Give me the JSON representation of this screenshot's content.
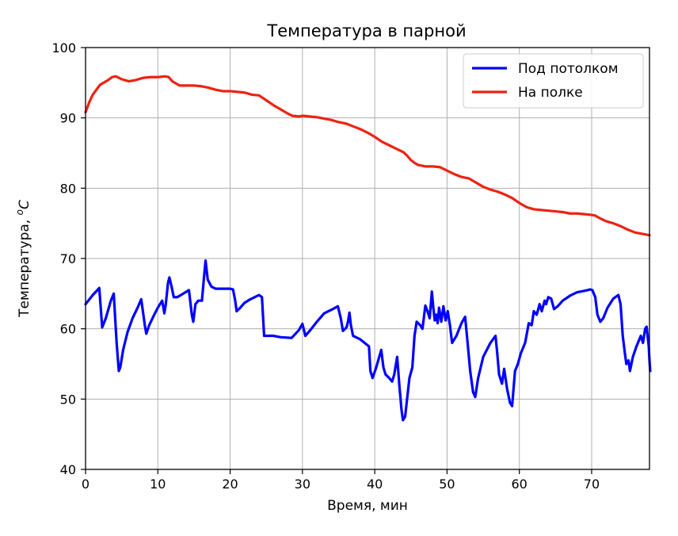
{
  "chart_data": {
    "type": "line",
    "title": "Температура в парной",
    "xlabel": "Время, мин",
    "ylabel_prefix": "Температура, ",
    "ylabel_sup": "o",
    "ylabel_unit": "C",
    "xlim": [
      0,
      78
    ],
    "ylim": [
      40,
      100
    ],
    "x_ticks": [
      0,
      10,
      20,
      30,
      40,
      50,
      60,
      70
    ],
    "y_ticks": [
      40,
      50,
      60,
      70,
      80,
      90,
      100
    ],
    "grid": true,
    "legend_position": "top-right",
    "series": [
      {
        "name": "Под потолком",
        "color": "#0000ff",
        "points": [
          [
            0,
            63.5
          ],
          [
            1,
            64.8
          ],
          [
            1.9,
            65.8
          ],
          [
            2.3,
            60.2
          ],
          [
            2.8,
            61.5
          ],
          [
            3.5,
            64
          ],
          [
            3.9,
            65
          ],
          [
            4.3,
            58
          ],
          [
            4.6,
            54
          ],
          [
            4.8,
            54.5
          ],
          [
            5.2,
            57
          ],
          [
            5.8,
            59.5
          ],
          [
            6.5,
            61.5
          ],
          [
            7.2,
            63
          ],
          [
            7.7,
            64.2
          ],
          [
            8,
            62
          ],
          [
            8.2,
            60.5
          ],
          [
            8.4,
            59.3
          ],
          [
            8.8,
            60.5
          ],
          [
            9.5,
            62
          ],
          [
            10,
            63
          ],
          [
            10.6,
            64
          ],
          [
            10.9,
            62.2
          ],
          [
            11.1,
            63.5
          ],
          [
            11.4,
            66.5
          ],
          [
            11.6,
            67.3
          ],
          [
            11.9,
            66
          ],
          [
            12.2,
            64.5
          ],
          [
            12.7,
            64.5
          ],
          [
            13.5,
            65
          ],
          [
            14.3,
            65.5
          ],
          [
            14.7,
            62
          ],
          [
            14.9,
            61
          ],
          [
            15.2,
            63.5
          ],
          [
            15.6,
            64
          ],
          [
            16.1,
            64
          ],
          [
            16.4,
            67.5
          ],
          [
            16.6,
            69.7
          ],
          [
            16.9,
            67
          ],
          [
            17.4,
            66
          ],
          [
            18,
            65.7
          ],
          [
            19,
            65.7
          ],
          [
            20,
            65.7
          ],
          [
            20.4,
            65.6
          ],
          [
            20.7,
            64
          ],
          [
            20.9,
            62.5
          ],
          [
            21.4,
            63
          ],
          [
            22,
            63.7
          ],
          [
            22.8,
            64.2
          ],
          [
            24,
            64.8
          ],
          [
            24.4,
            64.5
          ],
          [
            24.7,
            59
          ],
          [
            26,
            59
          ],
          [
            27,
            58.8
          ],
          [
            28.5,
            58.7
          ],
          [
            29.5,
            59.8
          ],
          [
            30,
            60.7
          ],
          [
            30.4,
            59
          ],
          [
            31,
            59.7
          ],
          [
            32,
            61
          ],
          [
            33,
            62.2
          ],
          [
            34,
            62.7
          ],
          [
            34.9,
            63.2
          ],
          [
            35.3,
            61.5
          ],
          [
            35.6,
            59.7
          ],
          [
            36.1,
            60.2
          ],
          [
            36.3,
            61
          ],
          [
            36.5,
            62.3
          ],
          [
            36.7,
            60.5
          ],
          [
            37,
            59
          ],
          [
            38,
            58.5
          ],
          [
            39.2,
            57.5
          ],
          [
            39.4,
            54
          ],
          [
            39.7,
            53
          ],
          [
            40.2,
            54.5
          ],
          [
            40.9,
            57
          ],
          [
            41.2,
            54.5
          ],
          [
            41.5,
            53.5
          ],
          [
            42,
            53
          ],
          [
            42.4,
            52.5
          ],
          [
            42.7,
            53.5
          ],
          [
            43.1,
            56
          ],
          [
            43.4,
            52
          ],
          [
            43.7,
            48.5
          ],
          [
            43.9,
            47
          ],
          [
            44.2,
            47.5
          ],
          [
            44.8,
            53
          ],
          [
            45.2,
            54.5
          ],
          [
            45.5,
            59
          ],
          [
            45.8,
            61
          ],
          [
            46.3,
            60.5
          ],
          [
            46.6,
            60
          ],
          [
            47,
            63.3
          ],
          [
            47.3,
            62.5
          ],
          [
            47.6,
            61.5
          ],
          [
            47.9,
            65.3
          ],
          [
            48.1,
            63
          ],
          [
            48.3,
            61.2
          ],
          [
            48.5,
            62
          ],
          [
            48.7,
            60.8
          ],
          [
            48.9,
            63
          ],
          [
            49.2,
            61
          ],
          [
            49.5,
            63.2
          ],
          [
            49.8,
            61.2
          ],
          [
            50.1,
            62.5
          ],
          [
            50.4,
            60.5
          ],
          [
            50.7,
            58
          ],
          [
            51.3,
            59
          ],
          [
            52,
            60.8
          ],
          [
            52.5,
            61.7
          ],
          [
            52.8,
            58.5
          ],
          [
            53.2,
            54
          ],
          [
            53.6,
            51
          ],
          [
            53.9,
            50.3
          ],
          [
            54.3,
            53
          ],
          [
            55,
            56
          ],
          [
            56,
            58
          ],
          [
            56.7,
            59
          ],
          [
            56.9,
            57
          ],
          [
            57.2,
            53.5
          ],
          [
            57.6,
            52.2
          ],
          [
            57.9,
            54.3
          ],
          [
            58.3,
            51.5
          ],
          [
            58.7,
            49.5
          ],
          [
            59,
            49
          ],
          [
            59.4,
            54
          ],
          [
            59.8,
            55
          ],
          [
            60.2,
            56.5
          ],
          [
            60.8,
            58
          ],
          [
            61.3,
            60.8
          ],
          [
            61.7,
            60.5
          ],
          [
            62,
            62.5
          ],
          [
            62.4,
            62
          ],
          [
            62.8,
            63.5
          ],
          [
            63.1,
            62.5
          ],
          [
            63.5,
            64
          ],
          [
            63.7,
            63.5
          ],
          [
            64,
            64.5
          ],
          [
            64.4,
            64.3
          ],
          [
            64.8,
            62.8
          ],
          [
            65.3,
            63.2
          ],
          [
            66,
            64
          ],
          [
            67,
            64.7
          ],
          [
            68,
            65.2
          ],
          [
            69,
            65.4
          ],
          [
            69.8,
            65.6
          ],
          [
            70.1,
            65.5
          ],
          [
            70.5,
            64.5
          ],
          [
            70.8,
            62
          ],
          [
            71.2,
            61
          ],
          [
            71.6,
            61.5
          ],
          [
            72.2,
            63
          ],
          [
            73,
            64.3
          ],
          [
            73.7,
            64.8
          ],
          [
            74,
            63.5
          ],
          [
            74.3,
            59
          ],
          [
            74.6,
            56.5
          ],
          [
            74.8,
            55
          ],
          [
            75.1,
            55.5
          ],
          [
            75.3,
            54
          ],
          [
            75.7,
            56
          ],
          [
            76.2,
            57.5
          ],
          [
            76.8,
            59
          ],
          [
            77.1,
            58
          ],
          [
            77.4,
            60
          ],
          [
            77.6,
            60.3
          ],
          [
            77.9,
            57.5
          ],
          [
            78,
            55.5
          ],
          [
            78.1,
            54
          ]
        ]
      },
      {
        "name": "На полке",
        "color": "#ee2211",
        "points": [
          [
            0,
            90.8
          ],
          [
            0.5,
            92.2
          ],
          [
            1,
            93.3
          ],
          [
            2,
            94.7
          ],
          [
            3,
            95.3
          ],
          [
            3.7,
            95.8
          ],
          [
            4.2,
            95.9
          ],
          [
            5,
            95.5
          ],
          [
            6,
            95.2
          ],
          [
            7,
            95.4
          ],
          [
            8,
            95.7
          ],
          [
            9,
            95.8
          ],
          [
            10,
            95.8
          ],
          [
            11,
            95.9
          ],
          [
            11.5,
            95.8
          ],
          [
            12,
            95.2
          ],
          [
            12.5,
            94.9
          ],
          [
            13,
            94.6
          ],
          [
            14,
            94.6
          ],
          [
            15,
            94.6
          ],
          [
            16,
            94.5
          ],
          [
            17,
            94.3
          ],
          [
            18,
            94
          ],
          [
            19,
            93.8
          ],
          [
            20,
            93.8
          ],
          [
            21,
            93.7
          ],
          [
            22,
            93.6
          ],
          [
            23,
            93.3
          ],
          [
            24,
            93.2
          ],
          [
            25,
            92.5
          ],
          [
            26,
            91.8
          ],
          [
            27,
            91.2
          ],
          [
            28,
            90.6
          ],
          [
            28.6,
            90.3
          ],
          [
            29.5,
            90.2
          ],
          [
            30,
            90.3
          ],
          [
            31,
            90.2
          ],
          [
            32,
            90.1
          ],
          [
            33,
            89.9
          ],
          [
            34,
            89.7
          ],
          [
            35,
            89.4
          ],
          [
            36,
            89.2
          ],
          [
            37,
            88.8
          ],
          [
            38,
            88.4
          ],
          [
            39,
            87.9
          ],
          [
            40,
            87.3
          ],
          [
            41,
            86.6
          ],
          [
            42,
            86.1
          ],
          [
            43,
            85.6
          ],
          [
            44,
            85.1
          ],
          [
            44.5,
            84.6
          ],
          [
            45,
            84
          ],
          [
            45.5,
            83.6
          ],
          [
            46,
            83.3
          ],
          [
            47,
            83.1
          ],
          [
            48,
            83.1
          ],
          [
            49,
            83
          ],
          [
            50,
            82.5
          ],
          [
            51,
            82
          ],
          [
            52,
            81.6
          ],
          [
            53,
            81.4
          ],
          [
            54,
            80.8
          ],
          [
            55,
            80.2
          ],
          [
            56,
            79.8
          ],
          [
            57,
            79.5
          ],
          [
            58,
            79.1
          ],
          [
            59,
            78.6
          ],
          [
            60,
            77.9
          ],
          [
            61,
            77.3
          ],
          [
            62,
            77
          ],
          [
            63,
            76.9
          ],
          [
            64,
            76.8
          ],
          [
            65,
            76.7
          ],
          [
            66,
            76.6
          ],
          [
            67,
            76.4
          ],
          [
            68,
            76.4
          ],
          [
            69,
            76.3
          ],
          [
            70,
            76.2
          ],
          [
            70.5,
            76.1
          ],
          [
            71,
            75.8
          ],
          [
            72,
            75.3
          ],
          [
            73,
            75
          ],
          [
            74,
            74.6
          ],
          [
            75,
            74.1
          ],
          [
            76,
            73.7
          ],
          [
            77,
            73.5
          ],
          [
            78,
            73.3
          ]
        ]
      }
    ]
  }
}
